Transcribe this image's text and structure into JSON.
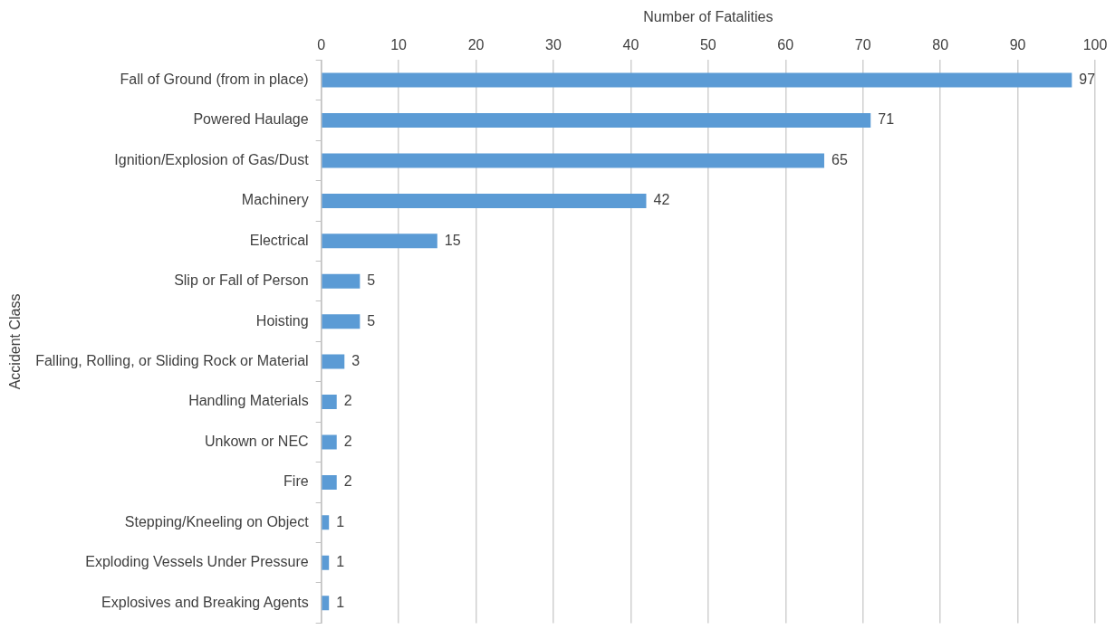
{
  "chart_data": {
    "type": "bar",
    "orientation": "horizontal",
    "xlabel": "Number of Fatalities",
    "ylabel": "Accident Class",
    "categories": [
      "Fall of Ground (from in place)",
      "Powered Haulage",
      "Ignition/Explosion of Gas/Dust",
      "Machinery",
      "Electrical",
      "Slip or Fall of Person",
      "Hoisting",
      "Falling, Rolling, or Sliding Rock or Material",
      "Handling Materials",
      "Unkown or NEC",
      "Fire",
      "Stepping/Kneeling on Object",
      "Exploding Vessels Under Pressure",
      "Explosives and Breaking Agents"
    ],
    "values": [
      97,
      71,
      65,
      42,
      15,
      5,
      5,
      3,
      2,
      2,
      2,
      1,
      1,
      1
    ],
    "color": "#5b9bd5",
    "xlim": [
      0,
      100
    ],
    "xticks": [
      0,
      10,
      20,
      30,
      40,
      50,
      60,
      70,
      80,
      90,
      100
    ],
    "grid": "x",
    "data_labels": true,
    "legend": false
  }
}
